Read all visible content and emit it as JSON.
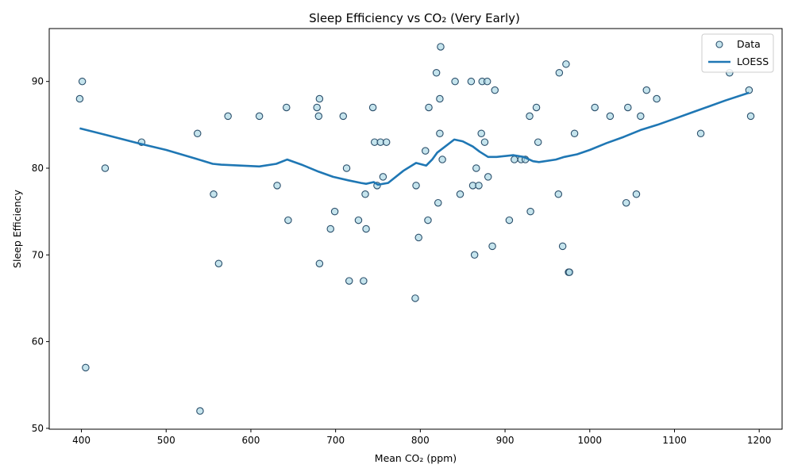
{
  "chart_data": {
    "type": "scatter",
    "title": "Sleep Efficiency vs CO₂ (Very Early)",
    "xlabel": "Mean CO₂ (ppm)",
    "ylabel": "Sleep Efficiency",
    "xlim": [
      362,
      1227
    ],
    "ylim": [
      49.9,
      96.1
    ],
    "xticks": [
      400,
      500,
      600,
      700,
      800,
      900,
      1000,
      1100,
      1200
    ],
    "yticks": [
      50,
      60,
      70,
      80,
      90
    ],
    "grid": false,
    "legend_position": "top-right",
    "colors": {
      "points_fill": "#add8e6",
      "points_edge": "#2b4f6b",
      "line": "#1f77b4"
    },
    "series": [
      {
        "name": "Data",
        "kind": "scatter",
        "points": [
          [
            398,
            88
          ],
          [
            401,
            90
          ],
          [
            405,
            57
          ],
          [
            428,
            80
          ],
          [
            471,
            83
          ],
          [
            537,
            84
          ],
          [
            540,
            52
          ],
          [
            556,
            77
          ],
          [
            562,
            69
          ],
          [
            573,
            86
          ],
          [
            610,
            86
          ],
          [
            631,
            78
          ],
          [
            642,
            87
          ],
          [
            644,
            74
          ],
          [
            678,
            87
          ],
          [
            680,
            86
          ],
          [
            681,
            88
          ],
          [
            681,
            69
          ],
          [
            694,
            73
          ],
          [
            699,
            75
          ],
          [
            709,
            86
          ],
          [
            713,
            80
          ],
          [
            716,
            67
          ],
          [
            727,
            74
          ],
          [
            733,
            67
          ],
          [
            735,
            77
          ],
          [
            736,
            73
          ],
          [
            744,
            87
          ],
          [
            746,
            83
          ],
          [
            749,
            78
          ],
          [
            753,
            83
          ],
          [
            756,
            79
          ],
          [
            760,
            83
          ],
          [
            794,
            65
          ],
          [
            795,
            78
          ],
          [
            798,
            72
          ],
          [
            806,
            82
          ],
          [
            809,
            74
          ],
          [
            810,
            87
          ],
          [
            819,
            91
          ],
          [
            821,
            76
          ],
          [
            823,
            84
          ],
          [
            823,
            88
          ],
          [
            824,
            94
          ],
          [
            826,
            81
          ],
          [
            841,
            90
          ],
          [
            847,
            77
          ],
          [
            860,
            90
          ],
          [
            862,
            78
          ],
          [
            864,
            70
          ],
          [
            866,
            80
          ],
          [
            869,
            78
          ],
          [
            872,
            84
          ],
          [
            873,
            90
          ],
          [
            876,
            83
          ],
          [
            879,
            90
          ],
          [
            880,
            79
          ],
          [
            885,
            71
          ],
          [
            888,
            89
          ],
          [
            905,
            74
          ],
          [
            911,
            81
          ],
          [
            919,
            81
          ],
          [
            924,
            81
          ],
          [
            929,
            86
          ],
          [
            930,
            75
          ],
          [
            937,
            87
          ],
          [
            939,
            83
          ],
          [
            963,
            77
          ],
          [
            964,
            91
          ],
          [
            968,
            71
          ],
          [
            972,
            92
          ],
          [
            975,
            68
          ],
          [
            976,
            68
          ],
          [
            982,
            84
          ],
          [
            1006,
            87
          ],
          [
            1024,
            86
          ],
          [
            1043,
            76
          ],
          [
            1045,
            87
          ],
          [
            1055,
            77
          ],
          [
            1060,
            86
          ],
          [
            1067,
            89
          ],
          [
            1079,
            88
          ],
          [
            1131,
            84
          ],
          [
            1165,
            91
          ],
          [
            1188,
            89
          ],
          [
            1190,
            86
          ]
        ]
      },
      {
        "name": "LOESS",
        "kind": "line",
        "points": [
          [
            398,
            84.6
          ],
          [
            430,
            83.8
          ],
          [
            470,
            82.8
          ],
          [
            500,
            82.1
          ],
          [
            535,
            81.1
          ],
          [
            555,
            80.5
          ],
          [
            565,
            80.4
          ],
          [
            610,
            80.2
          ],
          [
            630,
            80.5
          ],
          [
            643,
            81.0
          ],
          [
            660,
            80.4
          ],
          [
            680,
            79.6
          ],
          [
            697,
            79.0
          ],
          [
            715,
            78.6
          ],
          [
            730,
            78.3
          ],
          [
            736,
            78.2
          ],
          [
            745,
            78.4
          ],
          [
            750,
            78.1
          ],
          [
            762,
            78.3
          ],
          [
            780,
            79.7
          ],
          [
            795,
            80.6
          ],
          [
            807,
            80.3
          ],
          [
            814,
            81.0
          ],
          [
            820,
            81.8
          ],
          [
            828,
            82.4
          ],
          [
            840,
            83.3
          ],
          [
            850,
            83.1
          ],
          [
            862,
            82.5
          ],
          [
            870,
            81.9
          ],
          [
            880,
            81.3
          ],
          [
            890,
            81.3
          ],
          [
            910,
            81.5
          ],
          [
            922,
            81.3
          ],
          [
            933,
            80.8
          ],
          [
            940,
            80.7
          ],
          [
            960,
            81.0
          ],
          [
            970,
            81.3
          ],
          [
            985,
            81.6
          ],
          [
            1000,
            82.1
          ],
          [
            1020,
            82.9
          ],
          [
            1040,
            83.6
          ],
          [
            1060,
            84.4
          ],
          [
            1080,
            85.0
          ],
          [
            1100,
            85.7
          ],
          [
            1120,
            86.4
          ],
          [
            1140,
            87.1
          ],
          [
            1160,
            87.8
          ],
          [
            1188,
            88.7
          ]
        ]
      }
    ]
  }
}
